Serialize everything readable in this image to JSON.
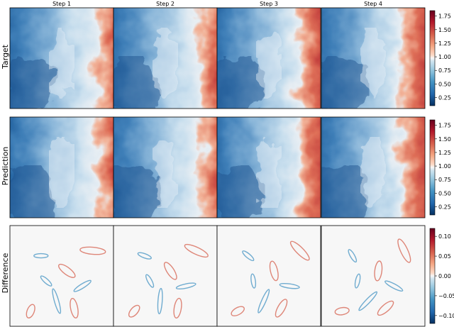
{
  "chart_data": {
    "type": "heatmap",
    "columns": [
      "Step 1",
      "Step 2",
      "Step 3",
      "Step 4"
    ],
    "rows": [
      {
        "label": "Target",
        "colormap": "RdBu_r",
        "colorbar_range": [
          0.1,
          1.85
        ],
        "colorbar_ticks": [
          "0.25",
          "0.50",
          "0.75",
          "1.00",
          "1.25",
          "1.50",
          "1.75"
        ],
        "colorbar_tick_values": [
          0.25,
          0.5,
          0.75,
          1.0,
          1.25,
          1.5,
          1.75
        ]
      },
      {
        "label": "Prediction",
        "colormap": "RdBu_r",
        "colorbar_range": [
          0.1,
          1.85
        ],
        "colorbar_ticks": [
          "0.25",
          "0.50",
          "0.75",
          "1.00",
          "1.25",
          "1.50",
          "1.75"
        ],
        "colorbar_tick_values": [
          0.25,
          0.5,
          0.75,
          1.0,
          1.25,
          1.5,
          1.75
        ]
      },
      {
        "label": "Difference",
        "colormap": "RdBu_r",
        "colorbar_range": [
          -0.12,
          0.12
        ],
        "colorbar_ticks": [
          "0.10",
          "0.05",
          "0.00",
          "−0.05",
          "−0.10"
        ],
        "colorbar_tick_values": [
          0.1,
          0.05,
          0.0,
          -0.05,
          -0.1
        ]
      }
    ],
    "colors": {
      "low": "#053061",
      "mid": "#f7f7f7",
      "high": "#67001f"
    }
  }
}
